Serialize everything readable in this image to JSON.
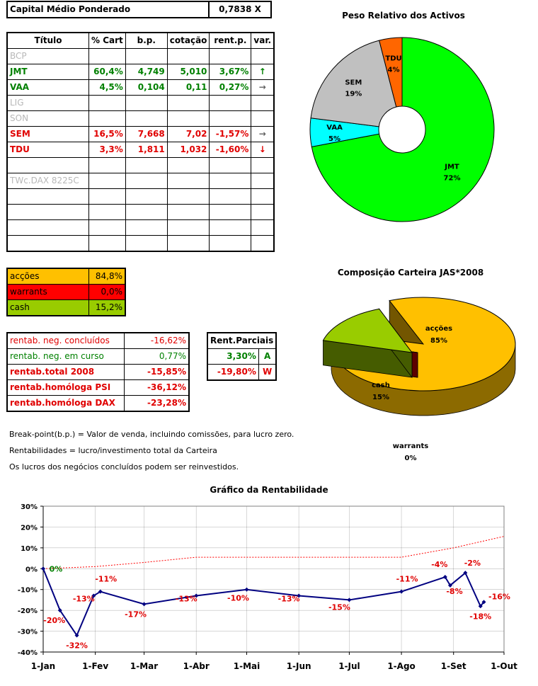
{
  "capital": {
    "label": "Capital Médio Ponderado",
    "value": "0,7838  X"
  },
  "portfolio": {
    "headers": [
      "Título",
      "% Cart",
      "b.p.",
      "cotação",
      "rent.p.",
      "var."
    ],
    "rows": [
      {
        "titulo": "BCP",
        "cart": "",
        "bp": "",
        "cot": "",
        "rent": "",
        "var": "",
        "style": "grey"
      },
      {
        "titulo": "JMT",
        "cart": "60,4%",
        "bp": "4,749",
        "cot": "5,010",
        "rent": "3,67%",
        "var": "↑",
        "style": "green"
      },
      {
        "titulo": "VAA",
        "cart": "4,5%",
        "bp": "0,104",
        "cot": "0,11",
        "rent": "0,27%",
        "var": "→",
        "style": "green"
      },
      {
        "titulo": "LIG",
        "cart": "",
        "bp": "",
        "cot": "",
        "rent": "",
        "var": "",
        "style": "grey"
      },
      {
        "titulo": "SON",
        "cart": "",
        "bp": "",
        "cot": "",
        "rent": "",
        "var": "",
        "style": "grey"
      },
      {
        "titulo": "SEM",
        "cart": "16,5%",
        "bp": "7,668",
        "cot": "7,02",
        "rent": "-1,57%",
        "var": "→",
        "style": "red"
      },
      {
        "titulo": "TDU",
        "cart": "3,3%",
        "bp": "1,811",
        "cot": "1,032",
        "rent": "-1,60%",
        "var": "↓",
        "style": "red"
      },
      {
        "titulo": "",
        "cart": "",
        "bp": "",
        "cot": "",
        "rent": "",
        "var": "",
        "style": ""
      },
      {
        "titulo": "TWc.DAX 8225C",
        "cart": "",
        "bp": "",
        "cot": "",
        "rent": "",
        "var": "",
        "style": "grey"
      },
      {
        "titulo": "",
        "cart": "",
        "bp": "",
        "cot": "",
        "rent": "",
        "var": "",
        "style": ""
      },
      {
        "titulo": "",
        "cart": "",
        "bp": "",
        "cot": "",
        "rent": "",
        "var": "",
        "style": ""
      },
      {
        "titulo": "",
        "cart": "",
        "bp": "",
        "cot": "",
        "rent": "",
        "var": "",
        "style": ""
      },
      {
        "titulo": "",
        "cart": "",
        "bp": "",
        "cot": "",
        "rent": "",
        "var": "",
        "style": ""
      }
    ]
  },
  "allocation": [
    {
      "label": "acções",
      "value": "84,8%",
      "bg": "#ffc000",
      "fg": "#000000"
    },
    {
      "label": "warrants",
      "value": "0,0%",
      "bg": "#ff0000",
      "fg": "#000000"
    },
    {
      "label": "cash",
      "value": "15,2%",
      "bg": "#99cc00",
      "fg": "#000000"
    }
  ],
  "returns": [
    {
      "label": "rentab. neg. concluídos",
      "value": "-16,62%",
      "style": "redn"
    },
    {
      "label": "rentab. neg. em curso",
      "value": "0,77%",
      "style": "greenn"
    },
    {
      "label": "rentab.total 2008",
      "value": "-15,85%",
      "style": "red"
    },
    {
      "label": "rentab.homóloga PSI",
      "value": "-36,12%",
      "style": "red"
    },
    {
      "label": "rentab.homóloga DAX",
      "value": "-23,28%",
      "style": "red"
    }
  ],
  "partial": {
    "header": "Rent.Parciais",
    "rows": [
      {
        "value": "3,30%",
        "code": "A",
        "style": "green"
      },
      {
        "value": "-19,80%",
        "code": "W",
        "style": "red"
      }
    ]
  },
  "notes": [
    "Break-point(b.p.) = Valor de venda, incluindo comissões, para lucro zero.",
    "Rentabilidades = lucro/investimento total da Carteira",
    "Os lucros dos negócios concluídos podem ser reinvestidos."
  ],
  "chart_data": [
    {
      "type": "pie",
      "title": "Peso Relativo dos Activos",
      "variant": "doughnut",
      "slices": [
        {
          "label": "JMT",
          "value": 72,
          "pct": "72%",
          "color": "#00ff00"
        },
        {
          "label": "VAA",
          "value": 5,
          "pct": "5%",
          "color": "#00ffff"
        },
        {
          "label": "SEM",
          "value": 19,
          "pct": "19%",
          "color": "#c0c0c0"
        },
        {
          "label": "TDU",
          "value": 4,
          "pct": "4%",
          "color": "#ff6600"
        }
      ]
    },
    {
      "type": "pie",
      "title": "Composição Carteira JAS*2008",
      "variant": "3d",
      "slices": [
        {
          "label": "acções",
          "value": 85,
          "pct": "85%",
          "color": "#ffc000"
        },
        {
          "label": "warrants",
          "value": 0,
          "pct": "0%",
          "color": "#cc0000"
        },
        {
          "label": "cash",
          "value": 15,
          "pct": "15%",
          "color": "#99cc00"
        }
      ]
    },
    {
      "type": "line",
      "title": "Gráfico da Rentabilidade",
      "x_ticks": [
        "1-Jan",
        "1-Fev",
        "1-Mar",
        "1-Abr",
        "1-Mai",
        "1-Jun",
        "1-Jul",
        "1-Ago",
        "1-Set",
        "1-Out"
      ],
      "y_ticks": [
        "30%",
        "20%",
        "10%",
        "0%",
        "-10%",
        "-20%",
        "-30%",
        "-40%"
      ],
      "ylim": [
        -40,
        30
      ],
      "xlim": [
        "2008-01-01",
        "2008-10-01"
      ],
      "grid": true,
      "series": [
        {
          "style": "solid",
          "color": "#000080",
          "points": [
            {
              "x": "2008-01-01",
              "y": 0,
              "label": "0%"
            },
            {
              "x": "2008-01-11",
              "y": -20,
              "label": "-20%"
            },
            {
              "x": "2008-01-21",
              "y": -32,
              "label": "-32%"
            },
            {
              "x": "2008-01-31",
              "y": -13,
              "label": "-13%"
            },
            {
              "x": "2008-02-04",
              "y": -11,
              "label": "-11%"
            },
            {
              "x": "2008-03-01",
              "y": -17,
              "label": "-17%"
            },
            {
              "x": "2008-04-01",
              "y": -13,
              "label": "-13%"
            },
            {
              "x": "2008-05-01",
              "y": -10,
              "label": "-10%"
            },
            {
              "x": "2008-06-01",
              "y": -13,
              "label": "-13%"
            },
            {
              "x": "2008-07-01",
              "y": -15,
              "label": "-15%"
            },
            {
              "x": "2008-08-01",
              "y": -11,
              "label": "-11%"
            },
            {
              "x": "2008-08-27",
              "y": -4,
              "label": "-4%"
            },
            {
              "x": "2008-08-30",
              "y": -8,
              "label": "-8%"
            },
            {
              "x": "2008-09-08",
              "y": -2,
              "label": "-2%"
            },
            {
              "x": "2008-09-17",
              "y": -18,
              "label": "-18%"
            },
            {
              "x": "2008-09-19",
              "y": -16,
              "label": "-16%"
            }
          ]
        },
        {
          "style": "dotted",
          "color": "#ff0000",
          "points": [
            {
              "x": "2008-01-01",
              "y": 0
            },
            {
              "x": "2008-02-01",
              "y": 1
            },
            {
              "x": "2008-03-01",
              "y": 3
            },
            {
              "x": "2008-04-01",
              "y": 5.5
            },
            {
              "x": "2008-05-01",
              "y": 5.5
            },
            {
              "x": "2008-06-01",
              "y": 5.5
            },
            {
              "x": "2008-07-01",
              "y": 5.5
            },
            {
              "x": "2008-08-01",
              "y": 5.5
            },
            {
              "x": "2008-09-01",
              "y": 10
            },
            {
              "x": "2008-10-01",
              "y": 15.5
            }
          ]
        }
      ]
    }
  ]
}
